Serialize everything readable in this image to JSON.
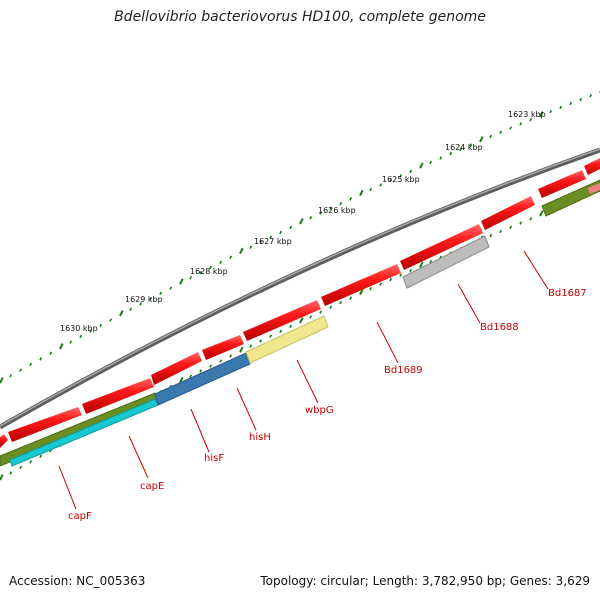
{
  "title": "Bdellovibrio bacteriovorus HD100, complete genome",
  "footer": {
    "accession": "Accession: NC_005363",
    "topology": "Topology: circular; Length: 3,782,950 bp; Genes: 3,629"
  },
  "scale_labels": [
    "1623 kbp",
    "1624 kbp",
    "1625 kbp",
    "1626 kbp",
    "1627 kbp",
    "1628 kbp",
    "1629 kbp",
    "1630 kbp"
  ],
  "gene_labels": [
    "Bd1687",
    "Bd1688",
    "Bd1689",
    "wbpG",
    "hisH",
    "hisF",
    "capE",
    "capF"
  ],
  "colors": {
    "backbone": "#7a7a7a",
    "forward_gene": "#e8101a",
    "label": "#cc0000",
    "tick": "#1a7a1a",
    "gray_feature": "#b0b0b0",
    "yellow_feature": "#f0e68c",
    "blue_feature": "#3a78b0",
    "olive_feature": "#6b8e23",
    "cyan_feature": "#18c8d0",
    "pink_feature": "#f08080"
  }
}
